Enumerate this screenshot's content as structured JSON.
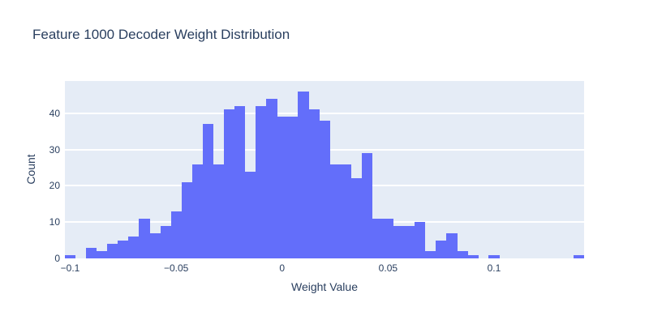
{
  "chart_data": {
    "type": "bar",
    "subtype": "histogram",
    "title": "Feature 1000 Decoder Weight Distribution",
    "xlabel": "Weight Value",
    "ylabel": "Count",
    "bin_size": 0.005,
    "bin_centers": [
      -0.1,
      -0.095,
      -0.09,
      -0.085,
      -0.08,
      -0.075,
      -0.07,
      -0.065,
      -0.06,
      -0.055,
      -0.05,
      -0.045,
      -0.04,
      -0.035,
      -0.03,
      -0.025,
      -0.02,
      -0.015,
      -0.01,
      -0.005,
      0.0,
      0.005,
      0.01,
      0.015,
      0.02,
      0.025,
      0.03,
      0.035,
      0.04,
      0.045,
      0.05,
      0.055,
      0.06,
      0.065,
      0.07,
      0.075,
      0.08,
      0.085,
      0.09,
      0.095,
      0.1,
      0.105,
      0.11,
      0.115,
      0.12,
      0.125,
      0.13,
      0.135,
      0.14
    ],
    "values": [
      1,
      0,
      3,
      2,
      4,
      5,
      6,
      11,
      7,
      9,
      13,
      21,
      26,
      37,
      26,
      41,
      42,
      24,
      42,
      44,
      39,
      39,
      46,
      41,
      38,
      26,
      26,
      22,
      29,
      11,
      11,
      9,
      9,
      10,
      2,
      5,
      7,
      2,
      1,
      0,
      1,
      0,
      0,
      0,
      0,
      0,
      0,
      0,
      1
    ],
    "x_range": [
      -0.1025,
      0.1425
    ],
    "y_range": [
      0,
      48.9
    ],
    "x_ticks": {
      "values": [
        -0.1,
        -0.05,
        0,
        0.05,
        0.1
      ],
      "labels": [
        "−0.1",
        "−0.05",
        "0",
        "0.05",
        "0.1"
      ]
    },
    "y_ticks": {
      "values": [
        0,
        10,
        20,
        30,
        40
      ],
      "labels": [
        "0",
        "10",
        "20",
        "30",
        "40"
      ]
    },
    "grid": true,
    "legend": false,
    "colors": {
      "bar": "#636efa",
      "plot_bg": "#e5ecf6",
      "grid": "#ffffff",
      "text": "#2a3f5f",
      "paper": "#ffffff"
    }
  }
}
